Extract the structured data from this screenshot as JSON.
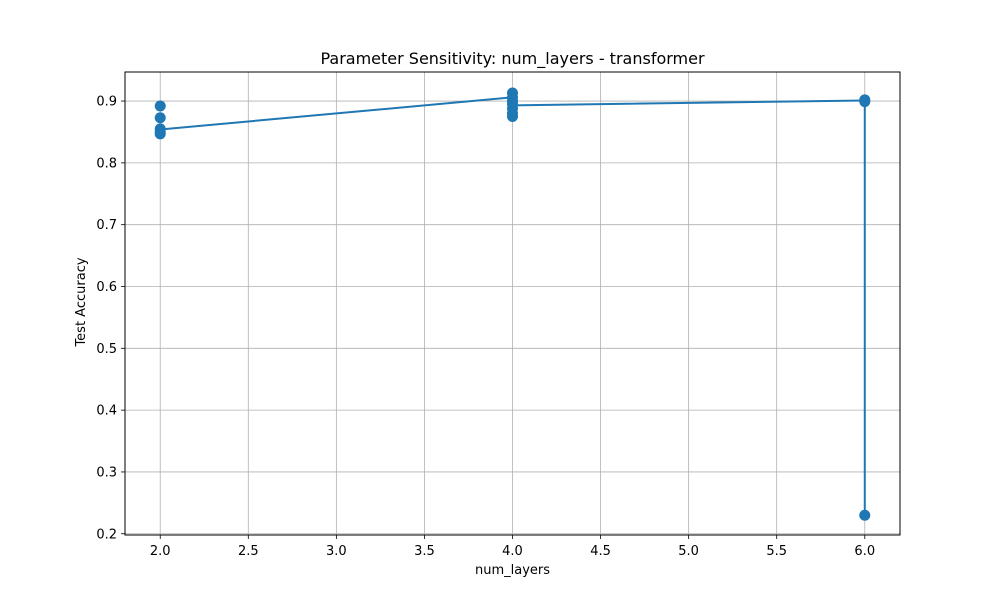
{
  "chart_data": {
    "type": "line",
    "title": "Parameter Sensitivity: num_layers - transformer",
    "xlabel": "num_layers",
    "ylabel": "Test Accuracy",
    "xlim": [
      1.8,
      6.2
    ],
    "ylim": [
      0.198,
      0.947
    ],
    "grid": true,
    "xticks": [
      2.0,
      2.5,
      3.0,
      3.5,
      4.0,
      4.5,
      5.0,
      5.5,
      6.0
    ],
    "xtick_labels": [
      "2.0",
      "2.5",
      "3.0",
      "3.5",
      "4.0",
      "4.5",
      "5.0",
      "5.5",
      "6.0"
    ],
    "yticks": [
      0.2,
      0.3,
      0.4,
      0.5,
      0.6,
      0.7,
      0.8,
      0.9
    ],
    "ytick_labels": [
      "0.2",
      "0.3",
      "0.4",
      "0.5",
      "0.6",
      "0.7",
      "0.8",
      "0.9"
    ],
    "series": [
      {
        "color": "#1f77b4",
        "marker": "circle",
        "points": [
          {
            "x": 2,
            "y": 0.892
          },
          {
            "x": 2,
            "y": 0.873
          },
          {
            "x": 2,
            "y": 0.855
          },
          {
            "x": 2,
            "y": 0.85
          },
          {
            "x": 2,
            "y": 0.847
          },
          {
            "x": 4,
            "y": 0.913
          },
          {
            "x": 4,
            "y": 0.906
          },
          {
            "x": 4,
            "y": 0.9
          },
          {
            "x": 4,
            "y": 0.895
          },
          {
            "x": 4,
            "y": 0.888
          },
          {
            "x": 4,
            "y": 0.88
          },
          {
            "x": 4,
            "y": 0.875
          },
          {
            "x": 6,
            "y": 0.902
          },
          {
            "x": 6,
            "y": 0.899
          },
          {
            "x": 6,
            "y": 0.23
          }
        ],
        "line": [
          {
            "x": 2,
            "y": 0.854
          },
          {
            "x": 4,
            "y": 0.906
          },
          {
            "x": 4,
            "y": 0.893
          },
          {
            "x": 6,
            "y": 0.901
          },
          {
            "x": 6,
            "y": 0.23
          }
        ]
      }
    ]
  }
}
